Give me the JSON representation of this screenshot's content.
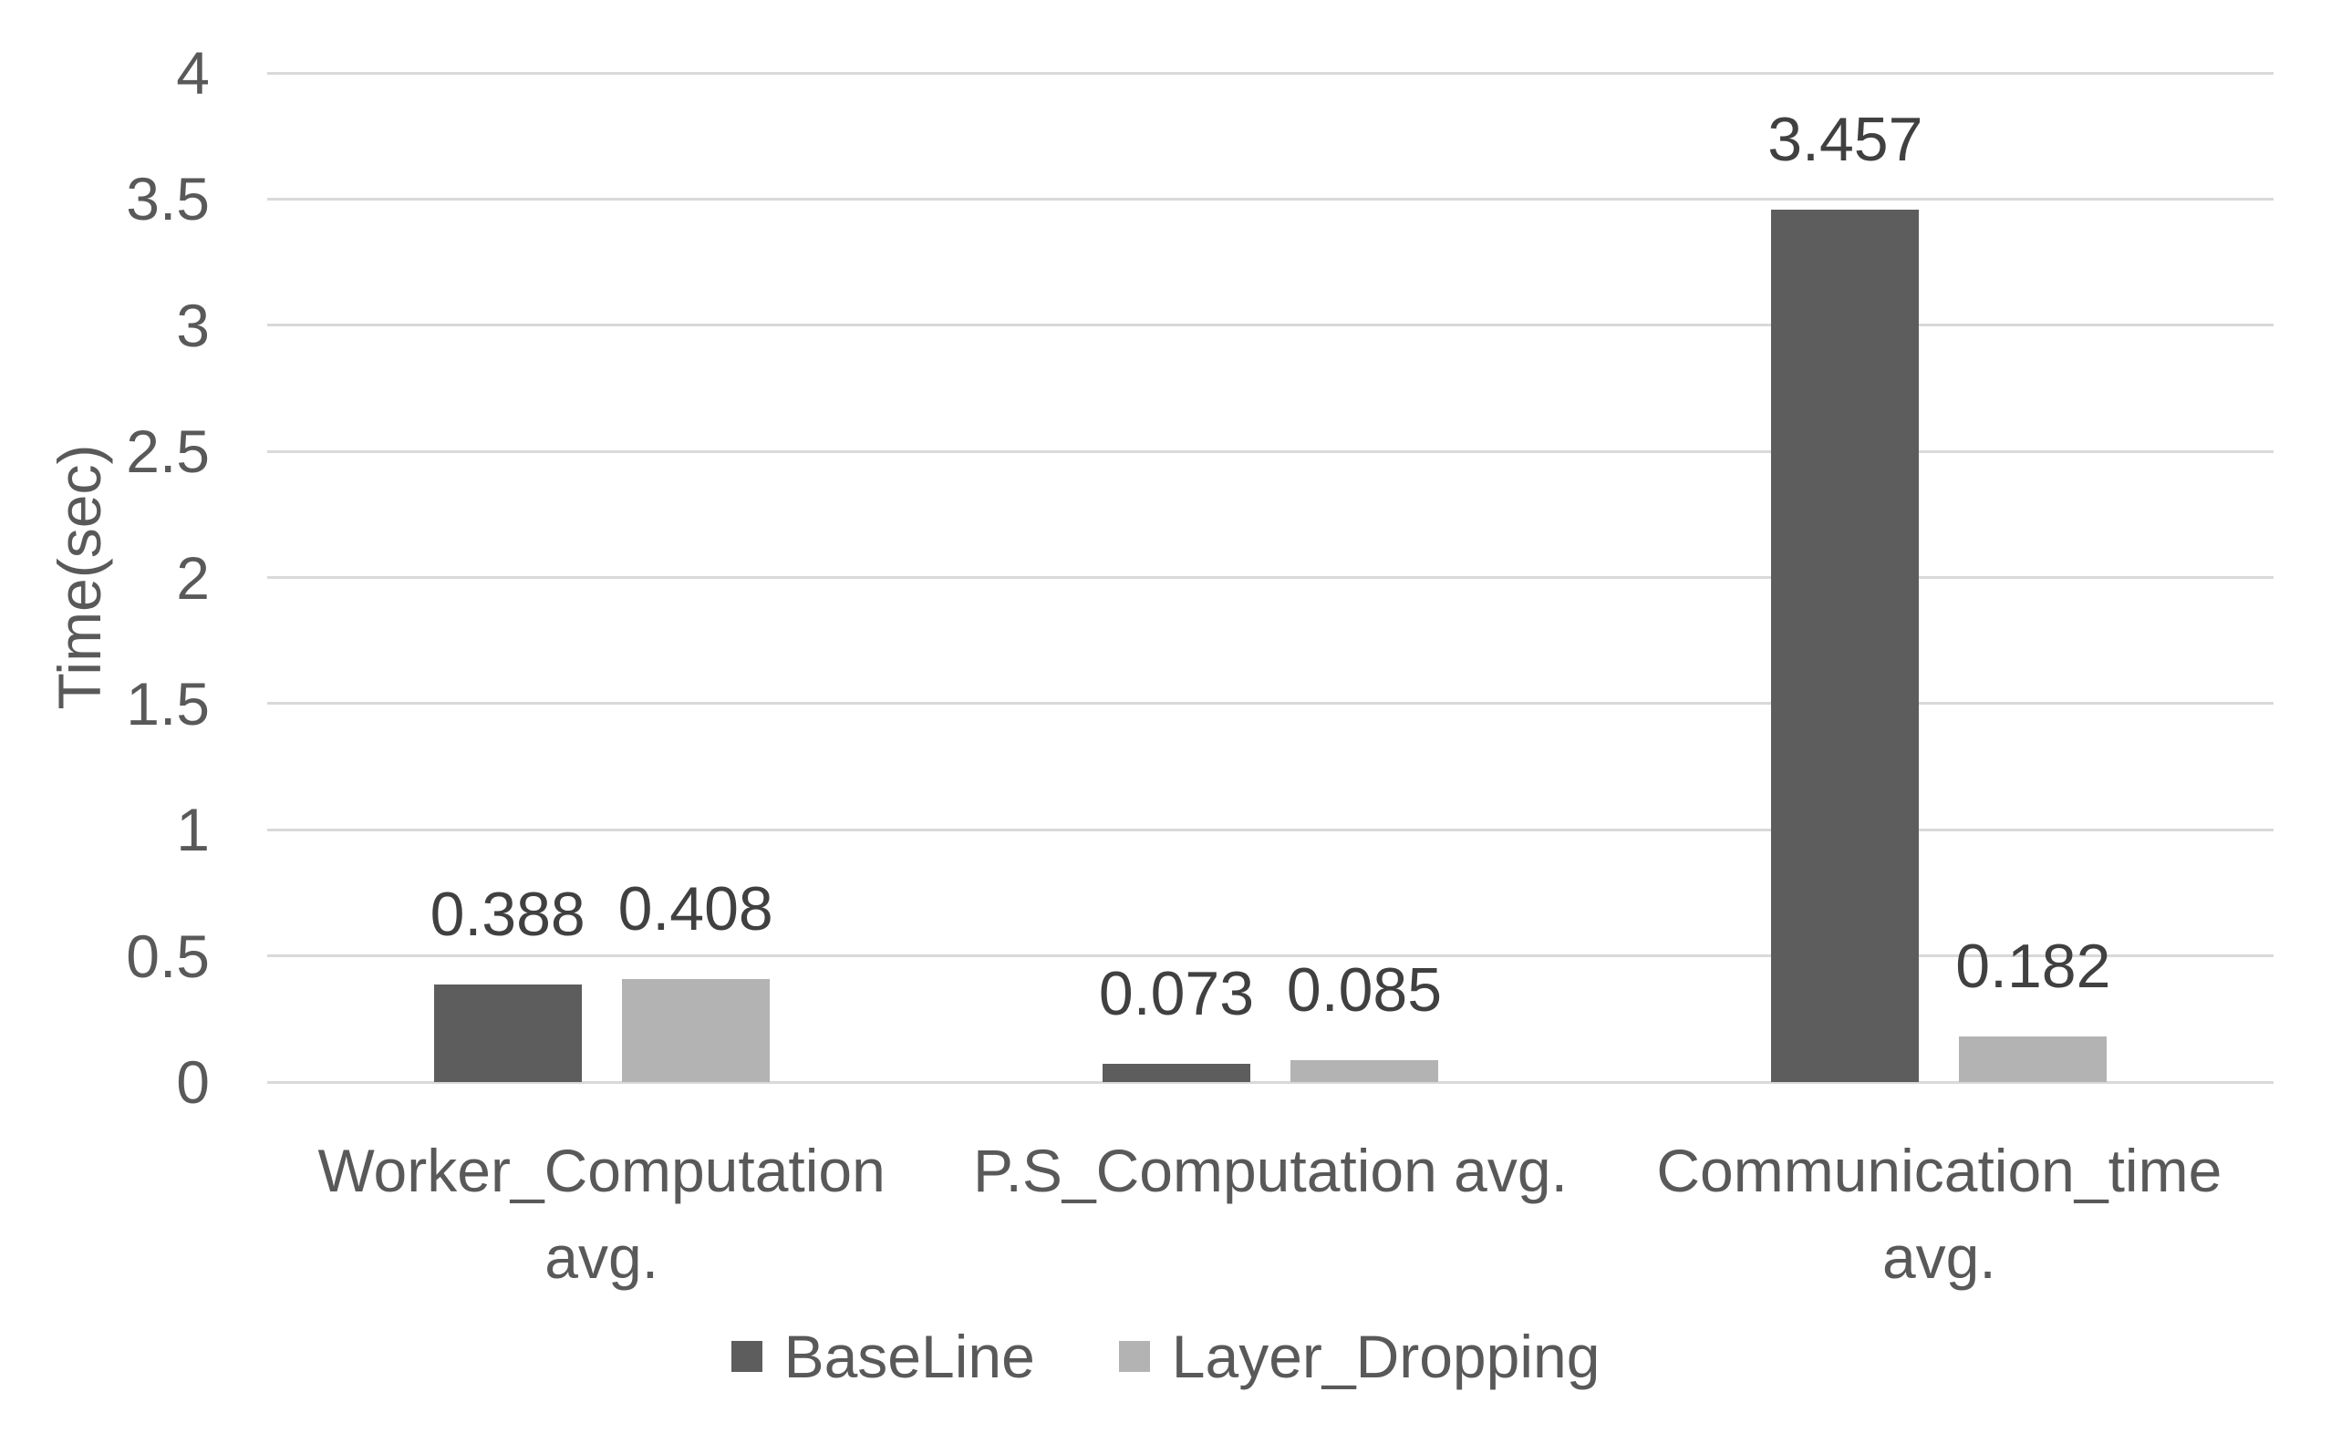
{
  "chart_data": {
    "type": "bar",
    "title": "",
    "xlabel": "",
    "ylabel": "Time(sec)",
    "ylim": [
      0,
      4
    ],
    "yticks": [
      0,
      0.5,
      1,
      1.5,
      2,
      2.5,
      3,
      3.5,
      4
    ],
    "ytick_labels": [
      "0",
      "0.5",
      "1",
      "1.5",
      "2",
      "2.5",
      "3",
      "3.5",
      "4"
    ],
    "grid": true,
    "legend_position": "bottom",
    "categories": [
      "Worker_Computation avg.",
      "P.S_Computation avg.",
      "Communication_time avg."
    ],
    "category_label_lines": [
      [
        "Worker_Computation",
        "avg."
      ],
      [
        "P.S_Computation avg."
      ],
      [
        "Communication_time",
        "avg."
      ]
    ],
    "series": [
      {
        "name": "BaseLine",
        "color": "#5d5d5d",
        "values": [
          0.388,
          0.073,
          3.457
        ],
        "labels": [
          "0.388",
          "0.073",
          "3.457"
        ]
      },
      {
        "name": "Layer_Dropping",
        "color": "#b3b3b3",
        "values": [
          0.408,
          0.085,
          0.182
        ],
        "labels": [
          "0.408",
          "0.085",
          "0.182"
        ]
      }
    ]
  },
  "colors": {
    "gridline": "#d9d9d9",
    "tick_text": "#595959",
    "data_label_text": "#404040",
    "background": "#ffffff"
  }
}
